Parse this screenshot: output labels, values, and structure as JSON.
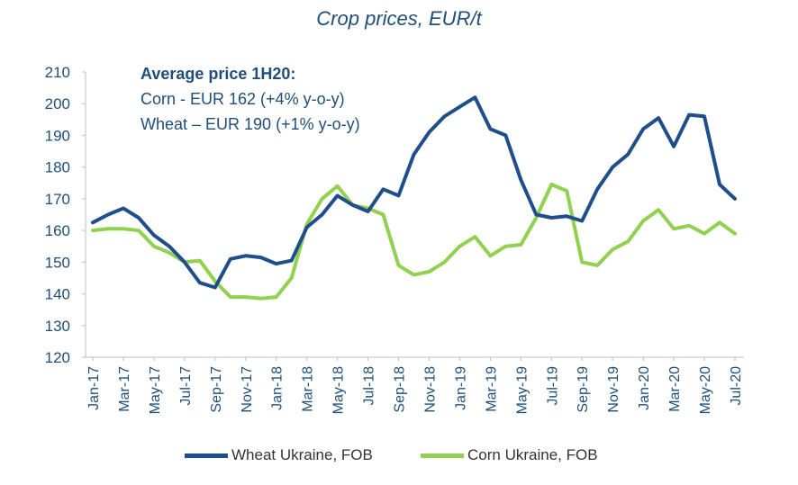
{
  "chart_data": {
    "type": "line",
    "title": "Crop prices, EUR/t",
    "xlabel": "",
    "ylabel": "",
    "ylim": [
      120,
      210
    ],
    "yticks": [
      120,
      130,
      140,
      150,
      160,
      170,
      180,
      190,
      200,
      210
    ],
    "grid": false,
    "legend_position": "bottom",
    "x": [
      "Jan-17",
      "Feb-17",
      "Mar-17",
      "Apr-17",
      "May-17",
      "Jun-17",
      "Jul-17",
      "Aug-17",
      "Sep-17",
      "Oct-17",
      "Nov-17",
      "Dec-17",
      "Jan-18",
      "Feb-18",
      "Mar-18",
      "Apr-18",
      "May-18",
      "Jun-18",
      "Jul-18",
      "Aug-18",
      "Sep-18",
      "Oct-18",
      "Nov-18",
      "Dec-18",
      "Jan-19",
      "Feb-19",
      "Mar-19",
      "Apr-19",
      "May-19",
      "Jun-19",
      "Jul-19",
      "Aug-19",
      "Sep-19",
      "Oct-19",
      "Nov-19",
      "Dec-19",
      "Jan-20",
      "Feb-20",
      "Mar-20",
      "Apr-20",
      "May-20",
      "Jun-20",
      "Jul-20"
    ],
    "xtick_labels": [
      "Jan-17",
      "Mar-17",
      "May-17",
      "Jul-17",
      "Sep-17",
      "Nov-17",
      "Jan-18",
      "Mar-18",
      "May-18",
      "Jul-18",
      "Sep-18",
      "Nov-18",
      "Jan-19",
      "Mar-19",
      "May-19",
      "Jul-19",
      "Sep-19",
      "Nov-19",
      "Jan-20",
      "Mar-20",
      "May-20",
      "Jul-20"
    ],
    "series": [
      {
        "name": "Wheat Ukraine, FOB",
        "color": "#1f4e8c",
        "values": [
          162.5,
          165,
          167,
          164,
          158.5,
          155,
          150,
          143.5,
          142,
          151,
          152,
          151.5,
          149.5,
          150.5,
          161,
          165,
          171,
          168,
          166,
          173,
          171,
          184,
          191,
          196,
          199,
          202,
          192,
          190,
          176,
          165,
          164,
          164.5,
          163,
          173,
          180,
          184,
          192,
          195.5,
          186.5,
          196.5,
          196,
          174.5,
          170
        ]
      },
      {
        "name": "Corn Ukraine, FOB",
        "color": "#92d050",
        "values": [
          160,
          160.5,
          160.5,
          160,
          155,
          153,
          150,
          150.5,
          144,
          139,
          139,
          138.5,
          139,
          145,
          162,
          170,
          174,
          168,
          167,
          165,
          149,
          146,
          147,
          150,
          155,
          158,
          152,
          155,
          155.5,
          164,
          174.5,
          172.5,
          150,
          149,
          154,
          156.5,
          163,
          166.5,
          160.5,
          161.5,
          159,
          162.5,
          159
        ]
      }
    ]
  },
  "annotation": {
    "heading": "Average price 1H20:",
    "line1": "Corn - EUR 162 (+4% y-o-y)",
    "line2": "Wheat – EUR 190 (+1% y-o-y)"
  }
}
